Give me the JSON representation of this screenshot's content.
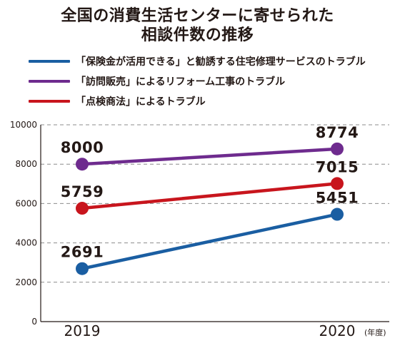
{
  "title_line1": "全国の消費生活センターに寄せられた",
  "title_line2": "相談件数の推移",
  "chart_data": {
    "type": "line",
    "x": [
      "2019",
      "2020"
    ],
    "x_unit": "(年度)",
    "ylim": [
      0,
      10000
    ],
    "yticks": [
      0,
      2000,
      4000,
      6000,
      8000,
      10000
    ],
    "grid": "horizontal-dashed",
    "legend_position": "top-left",
    "series": [
      {
        "name": "「保険金が活用できる」と勧誘する住宅修理サービスのトラブル",
        "values": [
          2691,
          5451
        ],
        "color": "#1a5ea2"
      },
      {
        "name": "「訪問販売」によるリフォーム工事のトラブル",
        "values": [
          8000,
          8774
        ],
        "color": "#6e2b8e"
      },
      {
        "name": "「点検商法」によるトラブル",
        "values": [
          5759,
          7015
        ],
        "color": "#c8151d"
      }
    ]
  }
}
